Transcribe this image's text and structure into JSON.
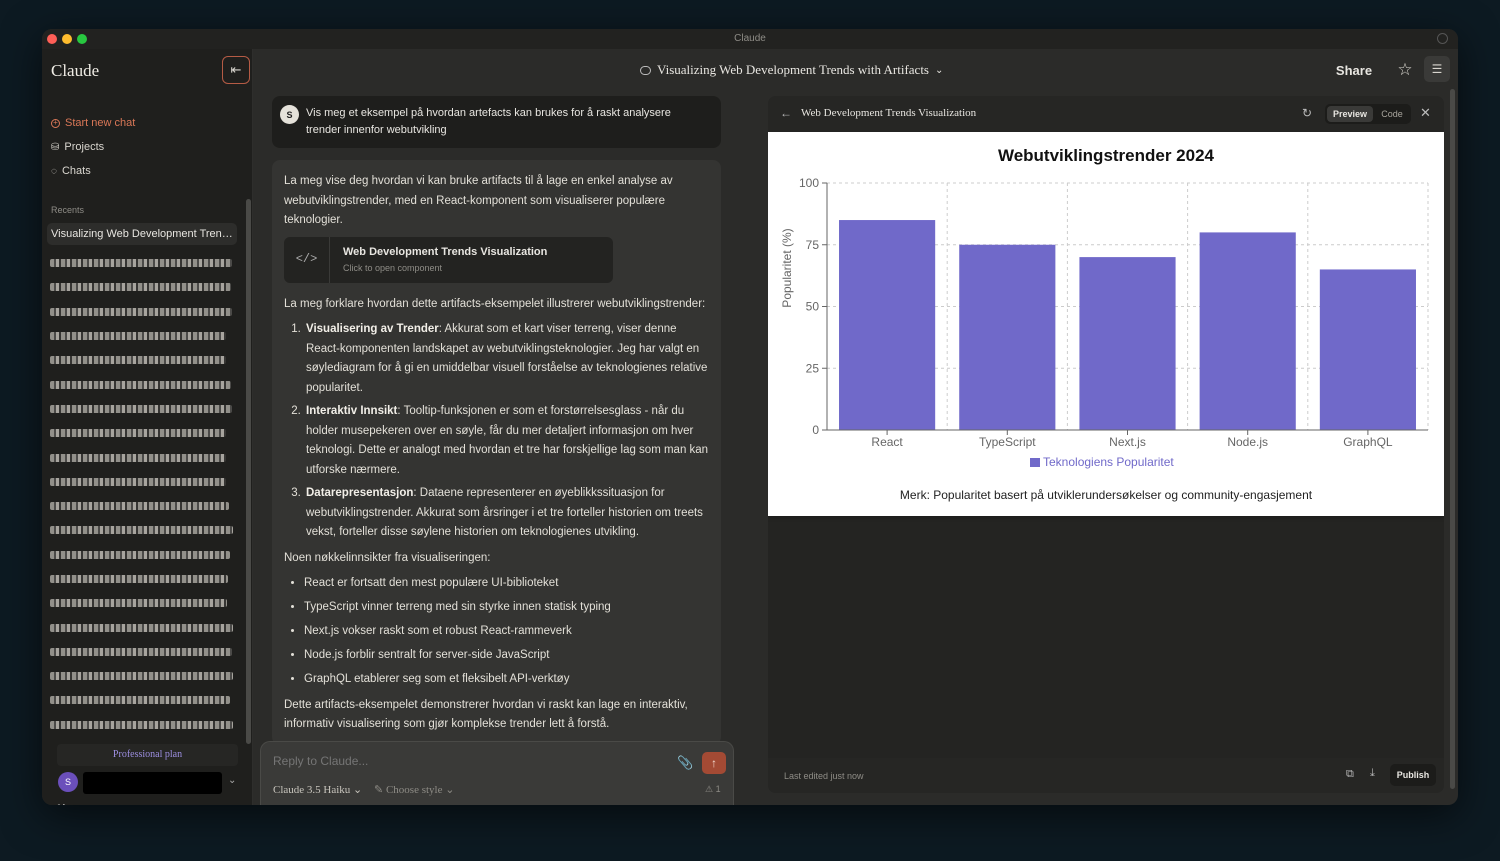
{
  "window": {
    "title": "Claude"
  },
  "sidebar": {
    "brand": "Claude",
    "collapse_icon": "⇤",
    "new_chat": "Start new chat",
    "projects": "Projects",
    "chats": "Chats",
    "recents_label": "Recents",
    "active_recent": "Visualizing Web Development Trend...",
    "blurred_recent_widths": [
      182,
      181,
      182,
      176,
      176,
      181,
      182,
      176,
      176,
      176,
      179,
      183,
      180,
      178,
      177,
      183,
      182,
      183,
      180,
      183
    ],
    "plan": "Professional plan",
    "user_initial": "S",
    "anthropic_mark": "A\\"
  },
  "header": {
    "chat_title": "Visualizing Web Development Trends with Artifacts",
    "chat_title_caret": "⌄",
    "share": "Share",
    "star_icon": "☆",
    "tune_icon": "☰"
  },
  "chat": {
    "user_initial": "S",
    "user_message": "Vis meg et eksempel på hvordan artefacts kan brukes for å raskt analysere trender innenfor webutvikling",
    "intro": "La meg vise deg hvordan vi kan bruke artifacts til å lage en enkel analyse av webutviklingstrender, med en React-komponent som visualiserer populære teknologier.",
    "artifact_card": {
      "title": "Web Development Trends Visualization",
      "subtitle": "Click to open component",
      "icon": "</>"
    },
    "explain": "La meg forklare hvordan dette artifacts-eksempelet illustrerer webutviklingstrender:",
    "points": [
      {
        "title": "Visualisering av Trender",
        "text": ": Akkurat som et kart viser terreng, viser denne React-komponenten landskapet av webutviklingsteknologier. Jeg har valgt en søylediagram for å gi en umiddelbar visuell forståelse av teknologienes relative popularitet."
      },
      {
        "title": "Interaktiv Innsikt",
        "text": ": Tooltip-funksjonen er som et forstørrelsesglass - når du holder musepekeren over en søyle, får du mer detaljert informasjon om hver teknologi. Dette er analogt med hvordan et tre har forskjellige lag som man kan utforske nærmere."
      },
      {
        "title": "Datarepresentasjon",
        "text": ": Dataene representerer en øyeblikkssituasjon for webutviklingstrender. Akkurat som årsringer i et tre forteller historien om treets vekst, forteller disse søylene historien om teknologienes utvikling."
      }
    ],
    "insights_intro": "Noen nøkkelinnsikter fra visualiseringen:",
    "insights": [
      "React er fortsatt den mest populære UI-biblioteket",
      "TypeScript vinner terreng med sin styrke innen statisk typing",
      "Next.js vokser raskt som et robust React-rammeverk",
      "Node.js forblir sentralt for server-side JavaScript",
      "GraphQL etablerer seg som et fleksibelt API-verktøy"
    ],
    "outro": "Dette artifacts-eksempelet demonstrerer hvordan vi raskt kan lage en interaktiv, informativ visualisering som gjør komplekse trender lett å forstå."
  },
  "composer": {
    "placeholder": "Reply to Claude...",
    "clip_icon": "📎",
    "send_icon": "↑",
    "model": "Claude 3.5 Haiku ⌄",
    "style": "✎ Choose style ⌄",
    "count": "⚠ 1"
  },
  "artifact_panel": {
    "back_icon": "←",
    "title": "Web Development Trends Visualization",
    "refresh_icon": "↻",
    "preview": "Preview",
    "code": "Code",
    "close_icon": "✕",
    "last_edited": "Last edited just now",
    "copy_icon": "⧉",
    "download_icon": "⤓",
    "publish": "Publish"
  },
  "chart_data": {
    "type": "bar",
    "title": "Webutviklingstrender 2024",
    "ylabel": "Popularitet (%)",
    "xlabel": "",
    "categories": [
      "React",
      "TypeScript",
      "Next.js",
      "Node.js",
      "GraphQL"
    ],
    "series": [
      {
        "name": "Teknologiens Popularitet",
        "values": [
          85,
          75,
          70,
          80,
          65
        ],
        "color": "#7069c9"
      }
    ],
    "ylim": [
      0,
      100
    ],
    "yticks": [
      0,
      25,
      50,
      75,
      100
    ],
    "grid": true,
    "legend": "bottom",
    "note": "Merk: Popularitet basert på utviklerundersøkelser og community-engasjement"
  }
}
